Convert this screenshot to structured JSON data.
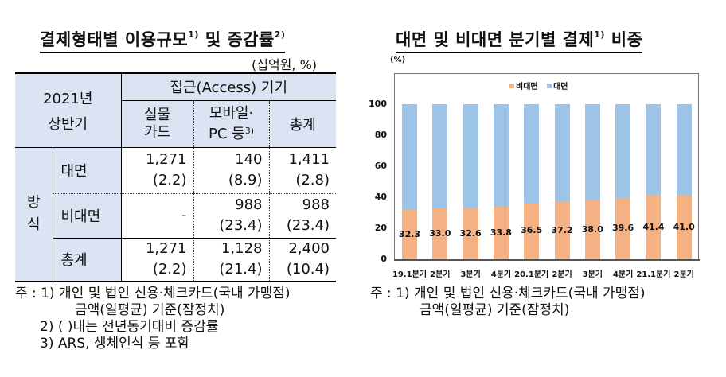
{
  "left": {
    "title": "결제형태별 이용규모",
    "title_sup1": "1)",
    "title_mid": " 및 증감률",
    "title_sup2": "2)",
    "unit": "(십억원, %)",
    "table": {
      "corner_line1": "2021년",
      "corner_line2": "상반기",
      "group_header": "접근(Access) 기기",
      "col_physical_1": "실물",
      "col_physical_2": "카드",
      "col_mobile_1": "모바일·",
      "col_mobile_2": "PC 등",
      "col_mobile_sup": "3)",
      "col_total": "총계",
      "row_group_1": "방",
      "row_group_2": "식",
      "rows": [
        {
          "label": "대면",
          "physical": "1,271",
          "physical_chg": "(2.2)",
          "mobile": "140",
          "mobile_chg": "(8.9)",
          "total": "1,411",
          "total_chg": "(2.8)"
        },
        {
          "label": "비대면",
          "physical": "-",
          "physical_chg": "",
          "mobile": "988",
          "mobile_chg": "(23.4)",
          "total": "988",
          "total_chg": "(23.4)"
        },
        {
          "label": "총계",
          "physical": "1,271",
          "physical_chg": "(2.2)",
          "mobile": "1,128",
          "mobile_chg": "(21.4)",
          "total": "2,400",
          "total_chg": "(10.4)"
        }
      ]
    },
    "notes": {
      "n1_prefix": "주 : 1) ",
      "n1_line1": "개인 및 법인 신용·체크카드(국내 가맹점)",
      "n1_line2": "금액(일평균) 기준(잠정치)",
      "n2": "2) (   )내는 전년동기대비 증감률",
      "n3": "3) ARS, 생체인식 등 포함"
    }
  },
  "right": {
    "title": "대면 및 비대면 분기별 결제",
    "title_sup": "1)",
    "title_end": " 비중",
    "notes": {
      "n1_prefix": "주 : 1) ",
      "n1_line1": "개인 및 법인 신용·체크카드(국내 가맹점)",
      "n1_line2": "금액(일평균) 기준(잠정치)"
    }
  },
  "chart_data": {
    "type": "bar",
    "stacked": true,
    "title": "대면 및 비대면 분기별 결제 비중",
    "ylabel": "(%)",
    "xlabel": "",
    "ylim": [
      0,
      100
    ],
    "yticks": [
      "0",
      "20",
      "40",
      "60",
      "80",
      "100"
    ],
    "grid": false,
    "legend_position": "top",
    "categories": [
      "19.1분기",
      "2분기",
      "3분기",
      "4분기",
      "20.1분기",
      "2분기",
      "3분기",
      "4분기",
      "21.1분기",
      "2분기"
    ],
    "series": [
      {
        "name": "비대면",
        "color": "#f4b183",
        "values": [
          32.3,
          33.0,
          32.6,
          33.8,
          36.5,
          37.2,
          38.0,
          39.6,
          41.4,
          41.0
        ]
      },
      {
        "name": "대면",
        "color": "#9dc3e6",
        "values": [
          67.7,
          67.0,
          67.4,
          66.2,
          63.5,
          62.8,
          62.0,
          60.4,
          58.6,
          59.0
        ]
      }
    ],
    "value_labels": [
      "32.3",
      "33.0",
      "32.6",
      "33.8",
      "36.5",
      "37.2",
      "38.0",
      "39.6",
      "41.4",
      "41.0"
    ]
  }
}
